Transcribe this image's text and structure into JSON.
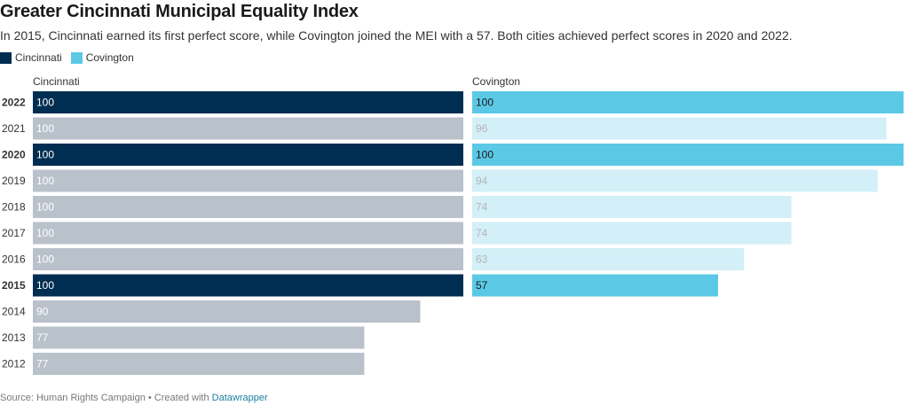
{
  "title": "Greater Cincinnati Municipal Equality Index",
  "subtitle": "In 2015, Cincinnati earned its first perfect score, while Covington joined the MEI with a 57. Both cities achieved perfect scores in 2020 and 2022.",
  "legend": [
    {
      "name": "Cincinnati",
      "color": "#002d52"
    },
    {
      "name": "Covington",
      "color": "#5bc9e6"
    }
  ],
  "footer": {
    "source": "Source: Human Rights Campaign • Created with ",
    "link": "Datawrapper"
  },
  "colors": {
    "cincinnati_highlight": "#002d52",
    "cincinnati_muted": "#b9c1cb",
    "covington_highlight": "#5bc9e6",
    "covington_muted": "#d3eff8"
  },
  "chart_data": {
    "type": "bar",
    "orientation": "horizontal",
    "categories": [
      "2022",
      "2021",
      "2020",
      "2019",
      "2018",
      "2017",
      "2016",
      "2015",
      "2014",
      "2013",
      "2012"
    ],
    "highlighted": [
      "2022",
      "2020",
      "2015"
    ],
    "xlim": [
      0,
      100
    ],
    "series": [
      {
        "name": "Cincinnati",
        "values": [
          100,
          100,
          100,
          100,
          100,
          100,
          100,
          100,
          90,
          77,
          77
        ]
      },
      {
        "name": "Covington",
        "values": [
          100,
          96,
          100,
          94,
          74,
          74,
          63,
          57,
          null,
          null,
          null
        ]
      }
    ]
  }
}
